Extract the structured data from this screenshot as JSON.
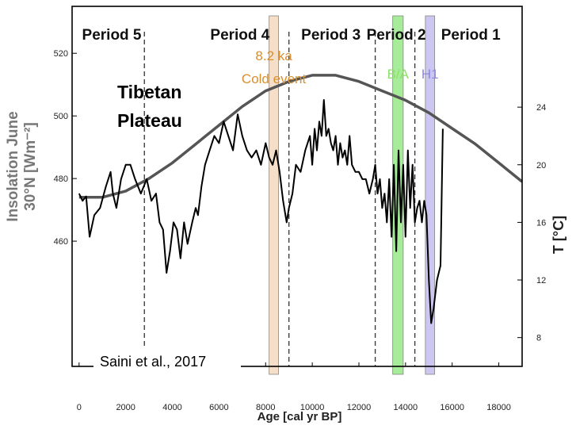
{
  "chart_data": {
    "type": "line",
    "title": "",
    "xlabel": "Age [cal yr BP]",
    "xlim": [
      -300,
      19000
    ],
    "xticks": [
      0,
      2000,
      4000,
      6000,
      8000,
      10000,
      12000,
      14000,
      16000,
      18000
    ],
    "y_left": {
      "label_line1": "Insolation June",
      "label_line2": "30°N [Wm⁻²]",
      "lim": [
        420,
        535
      ],
      "ticks": [
        460,
        480,
        500,
        520
      ]
    },
    "y_right": {
      "label": "T [°C]",
      "lim": [
        6,
        31
      ],
      "ticks": [
        8,
        12,
        16,
        20,
        24
      ]
    },
    "periods": [
      {
        "label": "Period 5"
      },
      {
        "label": "Period 4"
      },
      {
        "label": "Period 3"
      },
      {
        "label": "Period 2"
      },
      {
        "label": "Period 1"
      }
    ],
    "period_boundaries": [
      2800,
      9000,
      12700,
      14400
    ],
    "bands": [
      {
        "label_line1": "8.2 ka",
        "label_line2": "Cold event",
        "x0": 8150,
        "x1": 8550,
        "color": "#f5dcc4",
        "label_color": "#d88f2f"
      },
      {
        "label_line1": "B/A",
        "label_line2": "",
        "x0": 13450,
        "x1": 13900,
        "color": "#9eec8e",
        "label_color": "#8de06a"
      },
      {
        "label_line1": "H1",
        "label_line2": "",
        "x0": 14850,
        "x1": 15250,
        "color": "#c7c2ef",
        "label_color": "#8f87e0"
      }
    ],
    "annotation": {
      "line1": "Tibetan",
      "line2": "Plateau"
    },
    "source": "Saini et al., 2017",
    "series": [
      {
        "axis": "left",
        "color": "#555555",
        "x": [
          0,
          1000,
          2000,
          3000,
          4000,
          5000,
          6000,
          7000,
          8000,
          9000,
          10000,
          11000,
          12000,
          13000,
          14000,
          15000,
          16000,
          17000,
          18000,
          19000
        ],
        "y": [
          474,
          474,
          476,
          480,
          485,
          491,
          497,
          503,
          508,
          511,
          513,
          513,
          511,
          508,
          505,
          501,
          496,
          491,
          485,
          479
        ]
      },
      {
        "axis": "right",
        "color": "#000000",
        "x": [
          0,
          150,
          300,
          450,
          650,
          900,
          1150,
          1350,
          1450,
          1600,
          1800,
          2000,
          2200,
          2400,
          2650,
          2900,
          3100,
          3300,
          3450,
          3600,
          3750,
          3900,
          4050,
          4200,
          4350,
          4500,
          4650,
          4850,
          5000,
          5100,
          5250,
          5400,
          5600,
          5800,
          6000,
          6200,
          6400,
          6600,
          6800,
          7000,
          7200,
          7400,
          7600,
          7800,
          8000,
          8150,
          8300,
          8450,
          8600,
          8750,
          8900,
          9000,
          9150,
          9300,
          9500,
          9700,
          9900,
          10000,
          10100,
          10200,
          10300,
          10400,
          10500,
          10600,
          10700,
          10800,
          10900,
          11000,
          11100,
          11200,
          11300,
          11400,
          11500,
          11600,
          11700,
          11850,
          12000,
          12150,
          12300,
          12450,
          12600,
          12700,
          12800,
          12900,
          13000,
          13100,
          13200,
          13300,
          13400,
          13500,
          13600,
          13700,
          13800,
          13900,
          14000,
          14100,
          14200,
          14300,
          14400,
          14500,
          14600,
          14700,
          14800,
          14900,
          15000,
          15100,
          15200,
          15350,
          15500,
          15600
        ],
        "y": [
          18,
          17.5,
          17.8,
          15,
          16.5,
          17,
          18.5,
          19.5,
          18,
          17,
          19,
          20,
          20,
          19,
          18,
          19,
          17.5,
          18,
          16,
          15.5,
          12.5,
          14,
          16,
          15.5,
          13.5,
          16,
          14.5,
          16,
          17,
          16.5,
          18.5,
          20,
          21,
          22,
          21.5,
          23,
          22,
          21,
          23.5,
          22,
          21,
          20.5,
          21,
          20,
          21.5,
          20.5,
          20,
          21,
          19.5,
          17.5,
          16,
          17,
          18,
          20,
          19.5,
          21,
          22,
          20,
          22.5,
          21,
          23,
          22,
          24.5,
          22,
          22.5,
          21.5,
          21,
          22,
          20,
          21.5,
          20.5,
          21,
          20,
          22,
          20,
          19.5,
          19.5,
          19,
          19,
          18,
          19,
          20,
          18,
          19,
          17,
          18,
          16,
          19,
          15,
          20,
          14,
          21,
          16,
          20,
          15,
          21,
          17,
          20,
          16,
          17,
          17.5,
          16,
          17.5,
          16.5,
          12,
          9,
          10,
          12,
          13,
          22.5
        ]
      }
    ]
  }
}
